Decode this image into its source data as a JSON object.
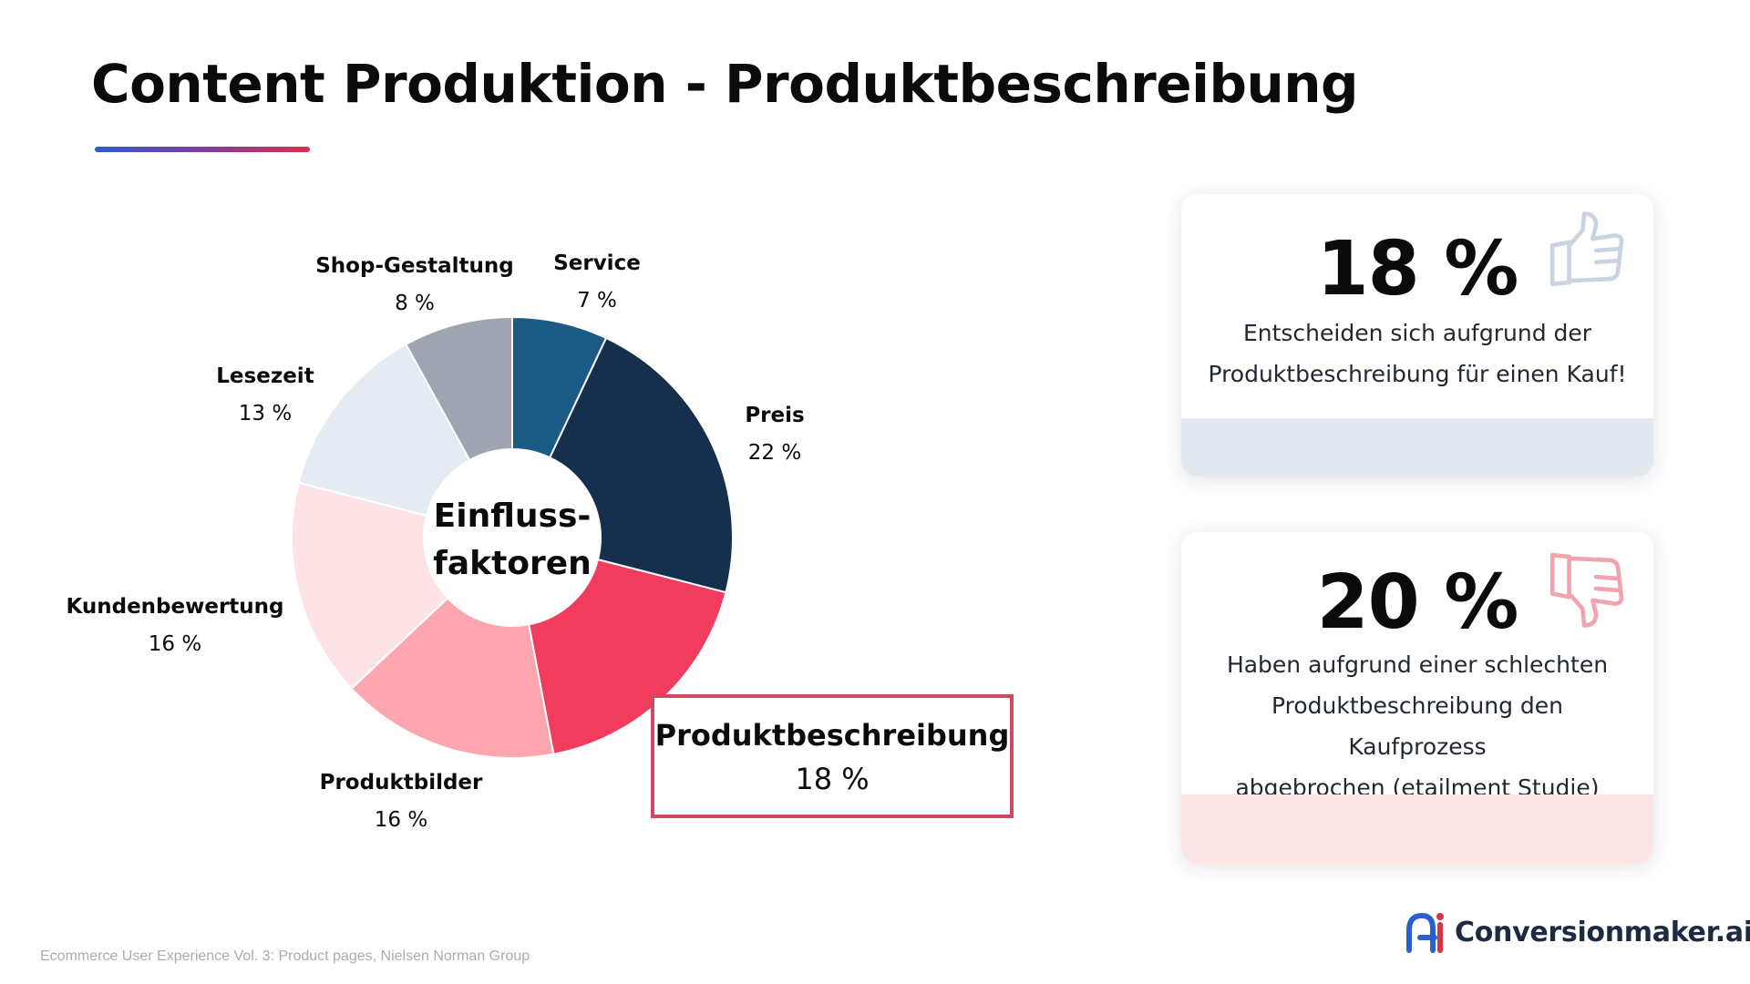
{
  "title": "Content Produktion - Produktbeschreibung",
  "colors": {
    "accent_red": "#d24863",
    "accent_blue": "#2b5fd1",
    "card1_band": "#e3e9f1",
    "card2_band": "#fde4e6"
  },
  "chart_data": {
    "type": "pie",
    "variant": "donut",
    "center_label": [
      "Einfluss-",
      "faktoren"
    ],
    "start": "top, clockwise from Service",
    "slices": [
      {
        "name": "Service",
        "value": 7,
        "label": "7 %",
        "color": "#1b5a84"
      },
      {
        "name": "Preis",
        "value": 22,
        "label": "22 %",
        "color": "#162f4d"
      },
      {
        "name": "Produktbeschreibung",
        "value": 18,
        "label": "18 %",
        "color": "#f13c5e",
        "highlighted": true
      },
      {
        "name": "Produktbilder",
        "value": 16,
        "label": "16 %",
        "color": "#fda6b0"
      },
      {
        "name": "Kundenbewertung",
        "value": 16,
        "label": "16 %",
        "color": "#fde3e6"
      },
      {
        "name": "Lesezeit",
        "value": 13,
        "label": "13 %",
        "color": "#e4ebf3"
      },
      {
        "name": "Shop-Gestaltung",
        "value": 8,
        "label": "8 %",
        "color": "#9ea4b0"
      }
    ]
  },
  "highlight": {
    "name": "Produktbeschreibung",
    "value": "18 %"
  },
  "cards": [
    {
      "value": "18 %",
      "text_lines": [
        "Entscheiden sich aufgrund der",
        "Produktbeschreibung für einen Kauf!"
      ],
      "icon": "thumbs-up-icon",
      "icon_color": "#c9d3e1",
      "band_color": "#e3e9f1"
    },
    {
      "value": "20 %",
      "text_lines": [
        "Haben aufgrund einer schlechten",
        "Produktbeschreibung den Kaufprozess",
        "abgebrochen (etailment Studie)"
      ],
      "icon": "thumbs-down-icon",
      "icon_color": "#f3a3ad",
      "band_color": "#fde4e6"
    }
  ],
  "source": "Ecommerce User Experience Vol. 3: Product pages, Nielsen Norman Group",
  "brand": {
    "name": "Conversionmaker.ai",
    "logo_icon": "ai-logo-icon"
  }
}
